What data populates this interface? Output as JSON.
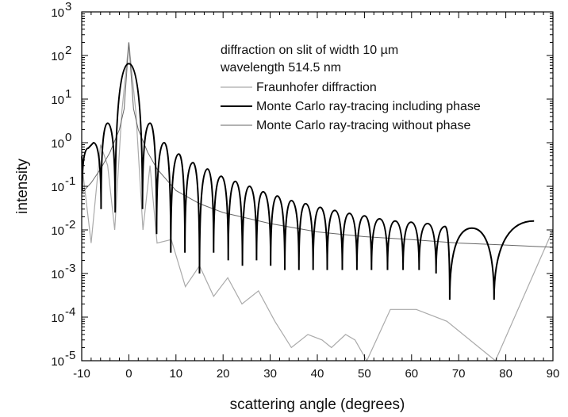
{
  "chart_data": {
    "type": "line",
    "title": "",
    "xlabel": "scattering angle (degrees)",
    "ylabel": "intensity",
    "xlim": [
      -10,
      90
    ],
    "ylim_log10": [
      -5,
      3
    ],
    "y_scale": "log",
    "grid": false,
    "legend_position": "top-right",
    "annotation": [
      "diffraction on slit of width 10 µm",
      "wavelength 514.5 nm"
    ],
    "x_ticks": [
      {
        "value": -10,
        "label": "-10"
      },
      {
        "value": 0,
        "label": "0"
      },
      {
        "value": 10,
        "label": "10"
      },
      {
        "value": 20,
        "label": "20"
      },
      {
        "value": 30,
        "label": "30"
      },
      {
        "value": 40,
        "label": "40"
      },
      {
        "value": 50,
        "label": "50"
      },
      {
        "value": 60,
        "label": "60"
      },
      {
        "value": 70,
        "label": "70"
      },
      {
        "value": 80,
        "label": "80"
      },
      {
        "value": 90,
        "label": "90"
      }
    ],
    "y_ticks": [
      {
        "exp": -5,
        "label": "10",
        "sup": "-5"
      },
      {
        "exp": -4,
        "label": "10",
        "sup": "-4"
      },
      {
        "exp": -3,
        "label": "10",
        "sup": "-3"
      },
      {
        "exp": -2,
        "label": "10",
        "sup": "-2"
      },
      {
        "exp": -1,
        "label": "10",
        "sup": "-1"
      },
      {
        "exp": 0,
        "label": "10",
        "sup": "0"
      },
      {
        "exp": 1,
        "label": "10",
        "sup": "1"
      },
      {
        "exp": 2,
        "label": "10",
        "sup": "2"
      },
      {
        "exp": 3,
        "label": "10",
        "sup": "3"
      }
    ],
    "model": {
      "slit_width_um": 10,
      "wavelength_nm": 514.5
    },
    "series": [
      {
        "name": "Fraunhofer diffraction",
        "color": "#aaaaaa",
        "points": [
          [
            -10,
            0.35
          ],
          [
            -8,
            0.005
          ],
          [
            -6,
            0.9
          ],
          [
            -4.5,
            0.3
          ],
          [
            -3,
            0.01
          ],
          [
            -1.5,
            5
          ],
          [
            0,
            200
          ],
          [
            1.5,
            5
          ],
          [
            3,
            0.01
          ],
          [
            4.5,
            0.3
          ],
          [
            6,
            0.005
          ],
          [
            9,
            0.006
          ],
          [
            12,
            0.0005
          ],
          [
            15,
            0.0015
          ],
          [
            18,
            0.0003
          ],
          [
            21,
            0.0008
          ],
          [
            24,
            0.0002
          ],
          [
            27.5,
            0.0004
          ],
          [
            31,
            8e-05
          ],
          [
            34.5,
            2e-05
          ],
          [
            38,
            4e-05
          ],
          [
            41,
            3e-05
          ],
          [
            43,
            2e-05
          ],
          [
            46,
            4e-05
          ],
          [
            48,
            3e-05
          ],
          [
            50.5,
            1e-05
          ],
          [
            55.5,
            0.00015
          ],
          [
            61,
            0.00015
          ],
          [
            67.5,
            8e-05
          ],
          [
            77.8,
            1e-05
          ],
          [
            90,
            0.01
          ]
        ]
      },
      {
        "name": "Monte Carlo ray-tracing including phase",
        "color": "#000000",
        "peaks": [
          {
            "x": -11.2,
            "y": 0.5
          },
          {
            "x": -8.6,
            "y": 0.75
          },
          {
            "x": -7.5,
            "y": 1.0
          },
          {
            "x": -4.5,
            "y": 2.8
          },
          {
            "x": 0,
            "y": 65
          },
          {
            "x": 4.5,
            "y": 2.8
          },
          {
            "x": 7.5,
            "y": 1.0
          },
          {
            "x": 10.6,
            "y": 0.55
          },
          {
            "x": 13.6,
            "y": 0.35
          },
          {
            "x": 16.7,
            "y": 0.25
          },
          {
            "x": 19.6,
            "y": 0.17
          },
          {
            "x": 22.6,
            "y": 0.13
          },
          {
            "x": 25.6,
            "y": 0.1
          },
          {
            "x": 28.5,
            "y": 0.075
          },
          {
            "x": 31.5,
            "y": 0.06
          },
          {
            "x": 34.5,
            "y": 0.047
          },
          {
            "x": 37.5,
            "y": 0.04
          },
          {
            "x": 40.6,
            "y": 0.033
          },
          {
            "x": 43.7,
            "y": 0.028
          },
          {
            "x": 46.8,
            "y": 0.024
          },
          {
            "x": 50,
            "y": 0.021
          },
          {
            "x": 53.2,
            "y": 0.018
          },
          {
            "x": 56.5,
            "y": 0.016
          },
          {
            "x": 59.9,
            "y": 0.015
          },
          {
            "x": 63.4,
            "y": 0.014
          },
          {
            "x": 67.1,
            "y": 0.012
          },
          {
            "x": 72.8,
            "y": 0.011
          },
          {
            "x": 86,
            "y": 0.016
          }
        ],
        "minima": [
          {
            "x": -9.9,
            "y": 0.08
          },
          {
            "x": -5.9,
            "y": 0.03
          },
          {
            "x": -2.9,
            "y": 0.025
          },
          {
            "x": 2.9,
            "y": 0.03
          },
          {
            "x": 5.9,
            "y": 0.008
          },
          {
            "x": 8.9,
            "y": 0.003
          },
          {
            "x": 11.9,
            "y": 0.003
          },
          {
            "x": 15,
            "y": 0.001
          },
          {
            "x": 18,
            "y": 0.003
          },
          {
            "x": 21.1,
            "y": 0.002
          },
          {
            "x": 24.1,
            "y": 0.0015
          },
          {
            "x": 27.1,
            "y": 0.002
          },
          {
            "x": 30.1,
            "y": 0.0015
          },
          {
            "x": 33.1,
            "y": 0.0012
          },
          {
            "x": 36.1,
            "y": 0.0012
          },
          {
            "x": 39.1,
            "y": 0.0012
          },
          {
            "x": 42.1,
            "y": 0.0012
          },
          {
            "x": 45.3,
            "y": 0.0012
          },
          {
            "x": 48.4,
            "y": 0.0012
          },
          {
            "x": 51.5,
            "y": 0.0012
          },
          {
            "x": 54.9,
            "y": 0.0012
          },
          {
            "x": 58.2,
            "y": 0.0012
          },
          {
            "x": 61.6,
            "y": 0.0012
          },
          {
            "x": 65.2,
            "y": 0.001
          },
          {
            "x": 68.1,
            "y": 0.00025
          },
          {
            "x": 77.5,
            "y": 0.00025
          }
        ]
      },
      {
        "name": "Monte Carlo ray-tracing without phase",
        "color": "#666666",
        "points": [
          [
            -10,
            0.07
          ],
          [
            -8,
            0.12
          ],
          [
            -6,
            0.25
          ],
          [
            -4,
            0.6
          ],
          [
            -2,
            2
          ],
          [
            -1,
            6
          ],
          [
            0,
            200
          ],
          [
            1,
            6
          ],
          [
            2,
            2
          ],
          [
            4,
            0.6
          ],
          [
            6,
            0.25
          ],
          [
            10,
            0.08
          ],
          [
            15,
            0.04
          ],
          [
            20,
            0.025
          ],
          [
            30,
            0.014
          ],
          [
            40,
            0.009
          ],
          [
            50,
            0.007
          ],
          [
            60,
            0.006
          ],
          [
            70,
            0.005
          ],
          [
            80,
            0.0045
          ],
          [
            90,
            0.004
          ]
        ]
      }
    ]
  }
}
